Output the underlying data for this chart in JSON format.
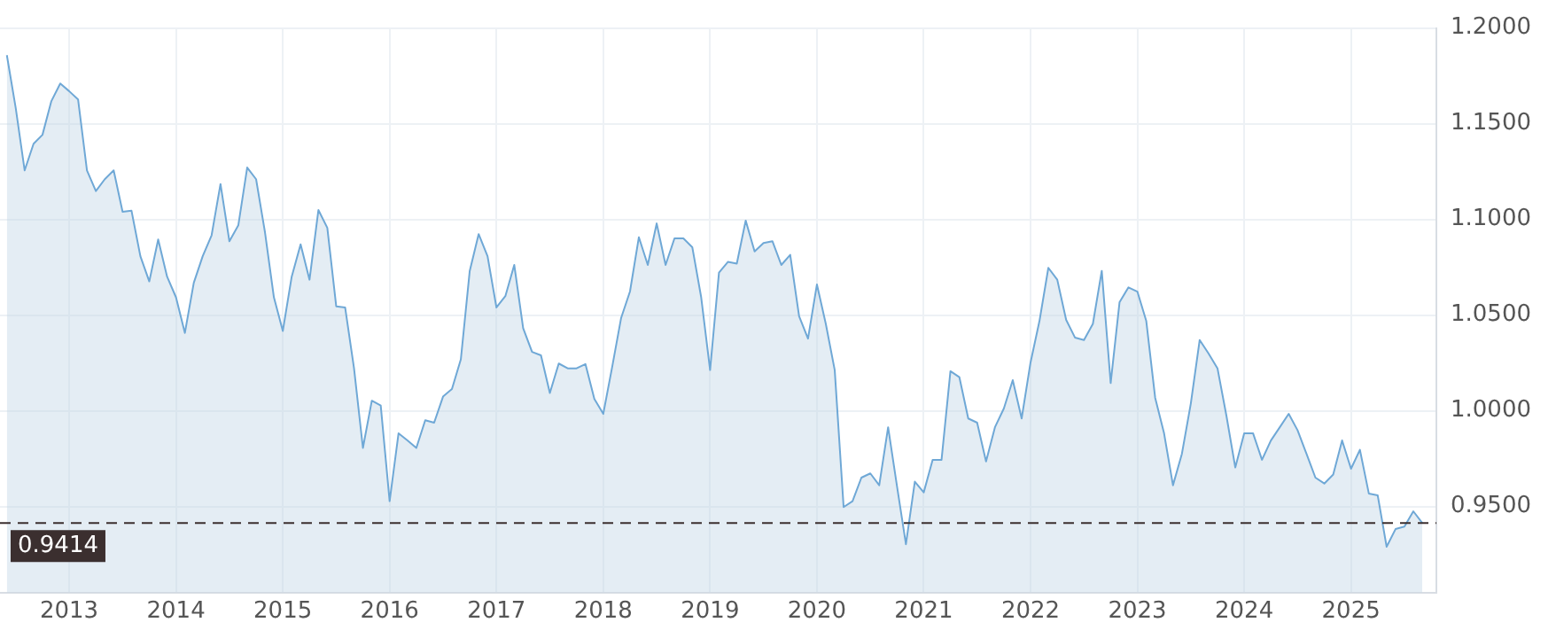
{
  "chart_data": {
    "type": "area",
    "x": [
      "2012-06",
      "2012-07",
      "2012-08",
      "2012-09",
      "2012-10",
      "2012-11",
      "2012-12",
      "2013-01",
      "2013-02",
      "2013-03",
      "2013-04",
      "2013-05",
      "2013-06",
      "2013-07",
      "2013-08",
      "2013-09",
      "2013-10",
      "2013-11",
      "2013-12",
      "2014-01",
      "2014-02",
      "2014-03",
      "2014-04",
      "2014-05",
      "2014-06",
      "2014-07",
      "2014-08",
      "2014-09",
      "2014-10",
      "2014-11",
      "2014-12",
      "2015-01",
      "2015-02",
      "2015-03",
      "2015-04",
      "2015-05",
      "2015-06",
      "2015-07",
      "2015-08",
      "2015-09",
      "2015-10",
      "2015-11",
      "2015-12",
      "2016-01",
      "2016-02",
      "2016-03",
      "2016-04",
      "2016-05",
      "2016-06",
      "2016-07",
      "2016-08",
      "2016-09",
      "2016-10",
      "2016-11",
      "2016-12",
      "2017-01",
      "2017-02",
      "2017-03",
      "2017-04",
      "2017-05",
      "2017-06",
      "2017-07",
      "2017-08",
      "2017-09",
      "2017-10",
      "2017-11",
      "2017-12",
      "2018-01",
      "2018-02",
      "2018-03",
      "2018-04",
      "2018-05",
      "2018-06",
      "2018-07",
      "2018-08",
      "2018-09",
      "2018-10",
      "2018-11",
      "2018-12",
      "2019-01",
      "2019-02",
      "2019-03",
      "2019-04",
      "2019-05",
      "2019-06",
      "2019-07",
      "2019-08",
      "2019-09",
      "2019-10",
      "2019-11",
      "2019-12",
      "2020-01",
      "2020-02",
      "2020-03",
      "2020-04",
      "2020-05",
      "2020-06",
      "2020-07",
      "2020-08",
      "2020-09",
      "2020-10",
      "2020-11",
      "2020-12",
      "2021-01",
      "2021-02",
      "2021-03",
      "2021-04",
      "2021-05",
      "2021-06",
      "2021-07",
      "2021-08",
      "2021-09",
      "2021-10",
      "2021-11",
      "2021-12",
      "2022-01",
      "2022-02",
      "2022-03",
      "2022-04",
      "2022-05",
      "2022-06",
      "2022-07",
      "2022-08",
      "2022-09",
      "2022-10",
      "2022-11",
      "2022-12",
      "2023-01",
      "2023-02",
      "2023-03",
      "2023-04",
      "2023-05",
      "2023-06",
      "2023-07",
      "2023-08",
      "2023-09",
      "2023-10",
      "2023-11",
      "2023-12",
      "2024-01",
      "2024-02",
      "2024-03",
      "2024-04",
      "2024-05",
      "2024-06",
      "2024-07",
      "2024-08",
      "2024-09",
      "2024-10",
      "2024-11",
      "2024-12",
      "2025-01",
      "2025-02",
      "2025-03",
      "2025-04",
      "2025-05",
      "2025-06",
      "2025-07",
      "2025-08",
      "2025-09"
    ],
    "series": [
      {
        "color": "#6fa8d6",
        "values": [
          1.1858,
          1.1581,
          1.1256,
          1.1395,
          1.1442,
          1.1618,
          1.171,
          1.167,
          1.1627,
          1.1256,
          1.1148,
          1.121,
          1.1256,
          1.104,
          1.1046,
          1.0808,
          1.0676,
          1.0895,
          1.0701,
          1.0593,
          1.0407,
          1.0669,
          1.0808,
          1.0917,
          1.1185,
          1.0886,
          1.0969,
          1.1271,
          1.121,
          1.0932,
          1.0593,
          1.0417,
          1.0701,
          1.087,
          1.0685,
          1.1049,
          1.0956,
          1.0546,
          1.054,
          1.0222,
          0.9806,
          1.0053,
          1.0028,
          0.9528,
          0.9882,
          0.9845,
          0.9806,
          0.9951,
          0.9938,
          1.0074,
          1.0114,
          1.0269,
          1.0731,
          1.0923,
          1.0808,
          1.054,
          1.0599,
          1.0762,
          1.0432,
          1.0308,
          1.029,
          1.0093,
          1.0247,
          1.0222,
          1.0222,
          1.0244,
          1.0062,
          0.9984,
          1.0229,
          1.0484,
          1.0623,
          1.0907,
          1.0762,
          1.0979,
          1.0762,
          1.0901,
          1.0901,
          1.0855,
          1.0593,
          1.0213,
          1.0722,
          1.0778,
          1.0769,
          1.0994,
          1.0833,
          1.0877,
          1.0886,
          1.0762,
          1.0815,
          1.0494,
          1.0377,
          1.066,
          1.0454,
          1.0213,
          0.9497,
          0.9528,
          0.9651,
          0.9673,
          0.9611,
          0.9914,
          0.9605,
          0.9303,
          0.963,
          0.9574,
          0.9744,
          0.9744,
          1.0207,
          1.0176,
          0.996,
          0.9938,
          0.9735,
          0.9914,
          1.0012,
          1.016,
          0.996,
          1.0253,
          1.0469,
          1.0747,
          1.0685,
          1.0475,
          1.0382,
          1.037,
          1.0454,
          1.0731,
          1.0145,
          1.0568,
          1.0645,
          1.0623,
          1.0469,
          1.0068,
          0.9882,
          0.9611,
          0.9775,
          1.0037,
          1.037,
          1.0299,
          1.0222,
          0.9975,
          0.9704,
          0.9882,
          0.9882,
          0.9744,
          0.9845,
          0.9914,
          0.9984,
          0.9898,
          0.9775,
          0.9651,
          0.962,
          0.9667,
          0.9845,
          0.9697,
          0.9796,
          0.9568,
          0.9558,
          0.929,
          0.9382,
          0.9395,
          0.9475,
          0.9414
        ]
      }
    ],
    "xlim": [
      "2012-05-08",
      "2025-10-19"
    ],
    "xticks": [
      "2013",
      "2014",
      "2015",
      "2016",
      "2017",
      "2018",
      "2019",
      "2020",
      "2021",
      "2022",
      "2023",
      "2024",
      "2025"
    ],
    "ylim": [
      0.905,
      1.2
    ],
    "yticks": [
      {
        "value": 0.95,
        "label": "0.9500"
      },
      {
        "value": 1,
        "label": "1.0000"
      },
      {
        "value": 1.05,
        "label": "1.0500"
      },
      {
        "value": 1.1,
        "label": "1.1000"
      },
      {
        "value": 1.15,
        "label": "1.1500"
      },
      {
        "value": 1.2,
        "label": "1.2000"
      }
    ],
    "ref_lines": [
      {
        "axis": "y",
        "value": 0.9414,
        "label": "0.9414",
        "color": "#3b2f2f",
        "line_style": "dashed"
      }
    ],
    "grid": true,
    "legend": false,
    "marker": "none",
    "line_style": "solid"
  }
}
